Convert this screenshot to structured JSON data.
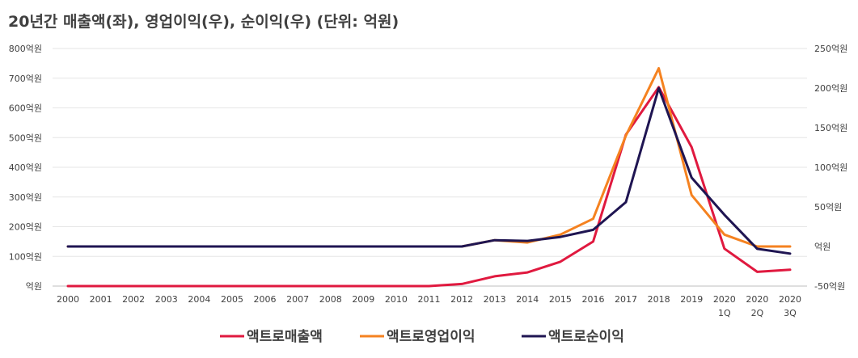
{
  "chart_data": {
    "type": "line",
    "title": "20년간 매출액(좌), 영업이익(우), 순이익(우) (단위: 억원)",
    "x": [
      "2000",
      "2001",
      "2002",
      "2003",
      "2004",
      "2005",
      "2006",
      "2007",
      "2008",
      "2009",
      "2010",
      "2011",
      "2012",
      "2013",
      "2014",
      "2015",
      "2016",
      "2017",
      "2018",
      "2019",
      "2020\n1Q",
      "2020\n2Q",
      "2020\n3Q"
    ],
    "y_left": {
      "ticks": [
        "억원",
        "100억원",
        "200억원",
        "300억원",
        "400억원",
        "500억원",
        "600억원",
        "700억원",
        "800억원"
      ],
      "range": [
        0,
        800
      ]
    },
    "y_right": {
      "ticks": [
        "-50억원",
        "억원",
        "50억원",
        "100억원",
        "150억원",
        "200억원",
        "250억원"
      ],
      "range": [
        -50,
        250
      ]
    },
    "grid": true,
    "legend_position": "bottom",
    "series": [
      {
        "name": "액트로매출액",
        "axis": "left",
        "color": "#e0193f",
        "values": [
          0,
          0,
          0,
          0,
          0,
          0,
          0,
          0,
          0,
          0,
          0,
          0,
          7,
          33,
          46,
          82,
          150,
          510,
          670,
          468,
          126,
          48,
          55
        ]
      },
      {
        "name": "액트로영업이익",
        "axis": "right",
        "color": "#f58220",
        "values": [
          0,
          0,
          0,
          0,
          0,
          0,
          0,
          0,
          0,
          0,
          0,
          0,
          0,
          8,
          5,
          15,
          35,
          140,
          225,
          65,
          15,
          0,
          0
        ]
      },
      {
        "name": "액트로순이익",
        "axis": "right",
        "color": "#1f1552",
        "values": [
          0,
          0,
          0,
          0,
          0,
          0,
          0,
          0,
          0,
          0,
          0,
          0,
          0,
          8,
          7,
          12,
          21,
          56,
          200,
          87,
          40,
          -3,
          -9
        ]
      }
    ]
  }
}
